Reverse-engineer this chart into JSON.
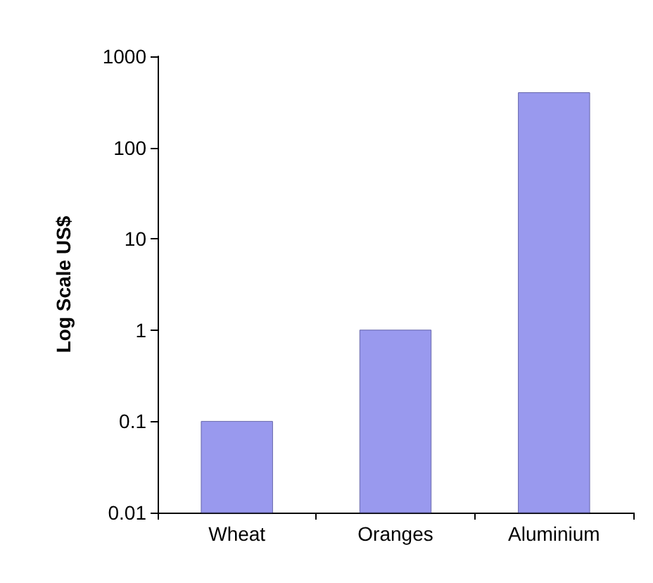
{
  "chart_data": {
    "type": "bar",
    "ylabel": "Log Scale US$",
    "categories": [
      "Wheat",
      "Oranges",
      "Aluminium"
    ],
    "values": [
      0.1,
      1,
      400
    ],
    "color": "#9999ee",
    "log": true,
    "ylim": [
      0.01,
      1000
    ],
    "yticks": [
      0.01,
      0.1,
      1,
      10,
      100,
      1000
    ],
    "grid": false
  }
}
